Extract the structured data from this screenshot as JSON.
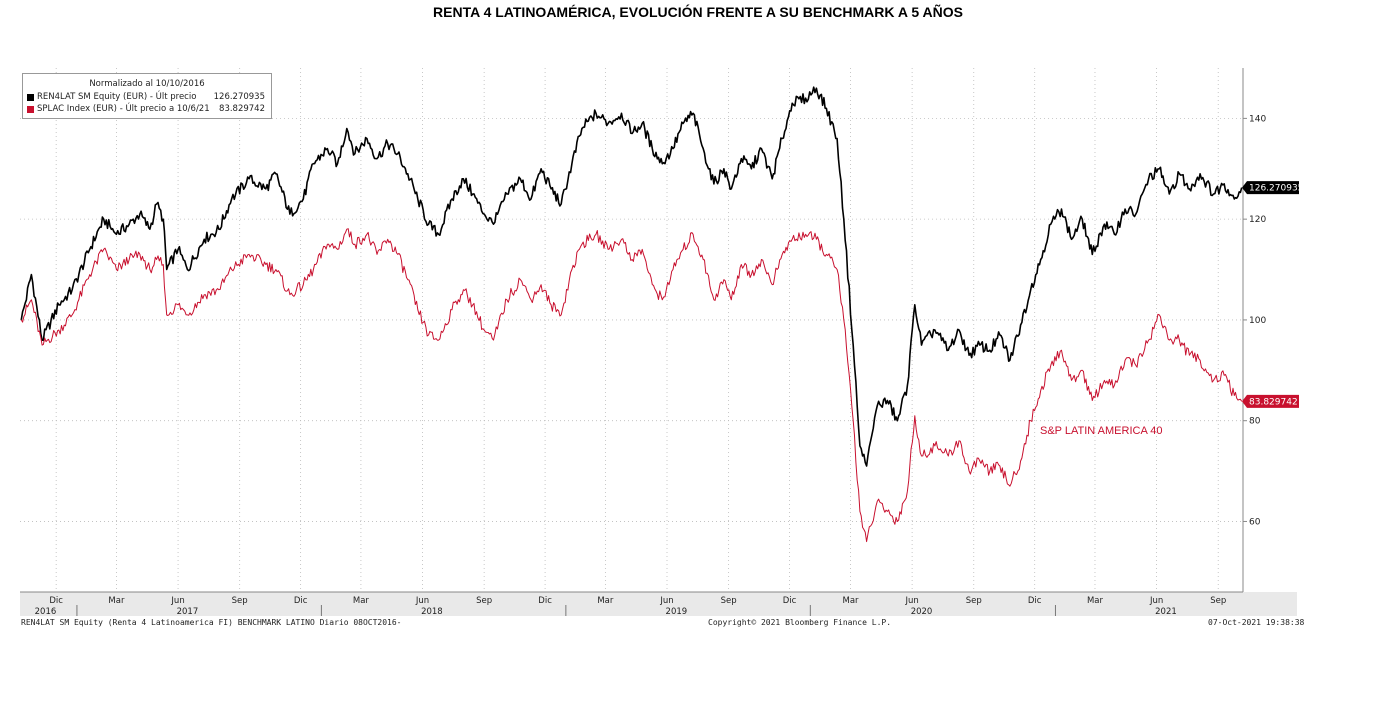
{
  "title": "RENTA 4 LATINOAMÉRICA, EVOLUCIÓN FRENTE A SU BENCHMARK A 5 AÑOS",
  "legend": {
    "header": "Normalizado al 10/10/2016",
    "rows": [
      {
        "label": "REN4LAT SM Equity (EUR) - Últ precio",
        "value": "126.270935",
        "color": "#000000"
      },
      {
        "label": "SPLAC Index (EUR) - Últ precio a 10/6/21",
        "value": "83.829742",
        "color": "#c8102e"
      }
    ]
  },
  "annotation": "S&P LATIN AMERICA 40",
  "last_labels": {
    "fund": "126.270935",
    "bench": "83.829742"
  },
  "footer": {
    "left": "REN4LAT SM Equity (Renta 4 Latinoamerica FI) BENCHMARK LATINO  Diario 08OCT2016-",
    "center": "Copyright© 2021 Bloomberg Finance L.P.",
    "right": "07-Oct-2021 19:38:38"
  },
  "chart_data": {
    "type": "line",
    "ylim": [
      46,
      150
    ],
    "yticks": [
      60,
      80,
      100,
      120,
      140
    ],
    "grid": true,
    "xlim": [
      "2016-10-08",
      "2021-10-08"
    ],
    "x_month_ticks": [
      {
        "label": "Dic",
        "date": "2016-12-01"
      },
      {
        "label": "Mar",
        "date": "2017-03-01"
      },
      {
        "label": "Jun",
        "date": "2017-06-01"
      },
      {
        "label": "Sep",
        "date": "2017-09-01"
      },
      {
        "label": "Dic",
        "date": "2017-12-01"
      },
      {
        "label": "Mar",
        "date": "2018-03-01"
      },
      {
        "label": "Jun",
        "date": "2018-06-01"
      },
      {
        "label": "Sep",
        "date": "2018-09-01"
      },
      {
        "label": "Dic",
        "date": "2018-12-01"
      },
      {
        "label": "Mar",
        "date": "2019-03-01"
      },
      {
        "label": "Jun",
        "date": "2019-06-01"
      },
      {
        "label": "Sep",
        "date": "2019-09-01"
      },
      {
        "label": "Dic",
        "date": "2019-12-01"
      },
      {
        "label": "Mar",
        "date": "2020-03-01"
      },
      {
        "label": "Jun",
        "date": "2020-06-01"
      },
      {
        "label": "Sep",
        "date": "2020-09-01"
      },
      {
        "label": "Dic",
        "date": "2020-12-01"
      },
      {
        "label": "Mar",
        "date": "2021-03-01"
      },
      {
        "label": "Jun",
        "date": "2021-06-01"
      },
      {
        "label": "Sep",
        "date": "2021-09-01"
      }
    ],
    "x_year_ticks": [
      {
        "label": "2016",
        "date": "2016-11-15"
      },
      {
        "label": "2017",
        "date": "2017-06-15"
      },
      {
        "label": "2018",
        "date": "2018-06-15"
      },
      {
        "label": "2019",
        "date": "2019-06-15"
      },
      {
        "label": "2020",
        "date": "2020-06-15"
      },
      {
        "label": "2021",
        "date": "2021-06-15"
      }
    ],
    "year_separators": [
      "2017-01-01",
      "2018-01-01",
      "2019-01-01",
      "2020-01-01",
      "2021-01-01"
    ],
    "series": [
      {
        "name": "REN4LAT SM Equity (EUR)",
        "color": "#000000",
        "points": [
          [
            "2016-10-10",
            100
          ],
          [
            "2016-10-25",
            109
          ],
          [
            "2016-11-10",
            96
          ],
          [
            "2016-12-05",
            103
          ],
          [
            "2016-12-25",
            106
          ],
          [
            "2017-01-20",
            114
          ],
          [
            "2017-02-10",
            120
          ],
          [
            "2017-03-01",
            117
          ],
          [
            "2017-03-20",
            119
          ],
          [
            "2017-04-05",
            121
          ],
          [
            "2017-04-20",
            118
          ],
          [
            "2017-04-30",
            123
          ],
          [
            "2017-05-10",
            120
          ],
          [
            "2017-05-15",
            110
          ],
          [
            "2017-06-01",
            114
          ],
          [
            "2017-06-15",
            110
          ],
          [
            "2017-07-10",
            116
          ],
          [
            "2017-08-01",
            118
          ],
          [
            "2017-08-20",
            124
          ],
          [
            "2017-09-15",
            128
          ],
          [
            "2017-10-10",
            126
          ],
          [
            "2017-10-25",
            129
          ],
          [
            "2017-11-15",
            121
          ],
          [
            "2017-12-05",
            124
          ],
          [
            "2017-12-20",
            131
          ],
          [
            "2018-01-10",
            134
          ],
          [
            "2018-01-25",
            131
          ],
          [
            "2018-02-08",
            138
          ],
          [
            "2018-02-20",
            133
          ],
          [
            "2018-03-10",
            136
          ],
          [
            "2018-03-25",
            132
          ],
          [
            "2018-04-10",
            135
          ],
          [
            "2018-04-25",
            133
          ],
          [
            "2018-05-10",
            129
          ],
          [
            "2018-05-25",
            124
          ],
          [
            "2018-06-10",
            119
          ],
          [
            "2018-06-25",
            117
          ],
          [
            "2018-07-15",
            124
          ],
          [
            "2018-08-01",
            128
          ],
          [
            "2018-08-15",
            125
          ],
          [
            "2018-09-01",
            121
          ],
          [
            "2018-09-15",
            119
          ],
          [
            "2018-10-05",
            125
          ],
          [
            "2018-10-25",
            128
          ],
          [
            "2018-11-10",
            124
          ],
          [
            "2018-11-25",
            130
          ],
          [
            "2018-12-10",
            126
          ],
          [
            "2018-12-25",
            123
          ],
          [
            "2019-01-10",
            131
          ],
          [
            "2019-01-25",
            138
          ],
          [
            "2019-02-15",
            141
          ],
          [
            "2019-03-05",
            139
          ],
          [
            "2019-03-25",
            141
          ],
          [
            "2019-04-10",
            137
          ],
          [
            "2019-04-25",
            139
          ],
          [
            "2019-05-10",
            134
          ],
          [
            "2019-05-25",
            131
          ],
          [
            "2019-06-10",
            134
          ],
          [
            "2019-06-25",
            139
          ],
          [
            "2019-07-10",
            141
          ],
          [
            "2019-07-25",
            134
          ],
          [
            "2019-08-10",
            127
          ],
          [
            "2019-08-25",
            130
          ],
          [
            "2019-09-05",
            126
          ],
          [
            "2019-09-20",
            132
          ],
          [
            "2019-10-05",
            130
          ],
          [
            "2019-10-20",
            134
          ],
          [
            "2019-11-05",
            128
          ],
          [
            "2019-11-20",
            136
          ],
          [
            "2019-12-05",
            143
          ],
          [
            "2019-12-25",
            144
          ],
          [
            "2020-01-10",
            146
          ],
          [
            "2020-01-25",
            142
          ],
          [
            "2020-02-10",
            136
          ],
          [
            "2020-02-20",
            120
          ],
          [
            "2020-03-05",
            95
          ],
          [
            "2020-03-15",
            75
          ],
          [
            "2020-03-25",
            71
          ],
          [
            "2020-04-10",
            83
          ],
          [
            "2020-04-25",
            84
          ],
          [
            "2020-05-10",
            80
          ],
          [
            "2020-05-25",
            87
          ],
          [
            "2020-06-05",
            103
          ],
          [
            "2020-06-15",
            95
          ],
          [
            "2020-07-05",
            98
          ],
          [
            "2020-07-25",
            94
          ],
          [
            "2020-08-10",
            98
          ],
          [
            "2020-08-25",
            93
          ],
          [
            "2020-09-10",
            95
          ],
          [
            "2020-09-25",
            94
          ],
          [
            "2020-10-10",
            97
          ],
          [
            "2020-10-25",
            92
          ],
          [
            "2020-11-10",
            99
          ],
          [
            "2020-11-25",
            106
          ],
          [
            "2020-12-10",
            112
          ],
          [
            "2020-12-25",
            119
          ],
          [
            "2021-01-10",
            122
          ],
          [
            "2021-01-25",
            116
          ],
          [
            "2021-02-10",
            120
          ],
          [
            "2021-02-25",
            113
          ],
          [
            "2021-03-15",
            119
          ],
          [
            "2021-03-30",
            117
          ],
          [
            "2021-04-15",
            122
          ],
          [
            "2021-05-01",
            121
          ],
          [
            "2021-05-20",
            128
          ],
          [
            "2021-06-05",
            130
          ],
          [
            "2021-06-20",
            125
          ],
          [
            "2021-07-05",
            129
          ],
          [
            "2021-07-20",
            126
          ],
          [
            "2021-08-05",
            129
          ],
          [
            "2021-08-25",
            125
          ],
          [
            "2021-09-10",
            127
          ],
          [
            "2021-09-25",
            124
          ],
          [
            "2021-10-06",
            126.27
          ]
        ]
      },
      {
        "name": "SPLAC Index (EUR)",
        "color": "#c8102e",
        "points": [
          [
            "2016-10-10",
            100
          ],
          [
            "2016-10-25",
            104
          ],
          [
            "2016-11-10",
            95
          ],
          [
            "2016-12-05",
            98
          ],
          [
            "2016-12-25",
            101
          ],
          [
            "2017-01-20",
            109
          ],
          [
            "2017-02-10",
            114
          ],
          [
            "2017-03-01",
            110
          ],
          [
            "2017-03-20",
            112
          ],
          [
            "2017-04-05",
            113
          ],
          [
            "2017-04-20",
            110
          ],
          [
            "2017-04-30",
            112
          ],
          [
            "2017-05-10",
            111
          ],
          [
            "2017-05-15",
            101
          ],
          [
            "2017-06-01",
            103
          ],
          [
            "2017-06-15",
            101
          ],
          [
            "2017-07-10",
            105
          ],
          [
            "2017-08-01",
            106
          ],
          [
            "2017-08-20",
            110
          ],
          [
            "2017-09-15",
            113
          ],
          [
            "2017-10-10",
            111
          ],
          [
            "2017-10-25",
            110
          ],
          [
            "2017-11-15",
            105
          ],
          [
            "2017-12-05",
            107
          ],
          [
            "2017-12-20",
            110
          ],
          [
            "2018-01-10",
            115
          ],
          [
            "2018-01-25",
            114
          ],
          [
            "2018-02-08",
            118
          ],
          [
            "2018-02-20",
            115
          ],
          [
            "2018-03-10",
            117
          ],
          [
            "2018-03-25",
            113
          ],
          [
            "2018-04-10",
            116
          ],
          [
            "2018-04-25",
            113
          ],
          [
            "2018-05-10",
            108
          ],
          [
            "2018-05-25",
            102
          ],
          [
            "2018-06-10",
            97
          ],
          [
            "2018-06-25",
            96
          ],
          [
            "2018-07-15",
            102
          ],
          [
            "2018-08-01",
            106
          ],
          [
            "2018-08-15",
            103
          ],
          [
            "2018-09-01",
            98
          ],
          [
            "2018-09-15",
            96
          ],
          [
            "2018-10-05",
            104
          ],
          [
            "2018-10-25",
            108
          ],
          [
            "2018-11-10",
            104
          ],
          [
            "2018-11-25",
            107
          ],
          [
            "2018-12-10",
            103
          ],
          [
            "2018-12-25",
            101
          ],
          [
            "2019-01-10",
            110
          ],
          [
            "2019-01-25",
            115
          ],
          [
            "2019-02-15",
            117
          ],
          [
            "2019-03-05",
            114
          ],
          [
            "2019-03-25",
            116
          ],
          [
            "2019-04-10",
            112
          ],
          [
            "2019-04-25",
            114
          ],
          [
            "2019-05-10",
            107
          ],
          [
            "2019-05-25",
            104
          ],
          [
            "2019-06-10",
            110
          ],
          [
            "2019-06-25",
            114
          ],
          [
            "2019-07-10",
            117
          ],
          [
            "2019-07-25",
            112
          ],
          [
            "2019-08-10",
            104
          ],
          [
            "2019-08-25",
            108
          ],
          [
            "2019-09-05",
            104
          ],
          [
            "2019-09-20",
            111
          ],
          [
            "2019-10-05",
            109
          ],
          [
            "2019-10-20",
            112
          ],
          [
            "2019-11-05",
            107
          ],
          [
            "2019-11-20",
            113
          ],
          [
            "2019-12-05",
            116
          ],
          [
            "2019-12-25",
            117
          ],
          [
            "2020-01-10",
            116
          ],
          [
            "2020-01-25",
            113
          ],
          [
            "2020-02-10",
            110
          ],
          [
            "2020-02-20",
            100
          ],
          [
            "2020-03-05",
            80
          ],
          [
            "2020-03-15",
            62
          ],
          [
            "2020-03-25",
            56
          ],
          [
            "2020-04-10",
            64
          ],
          [
            "2020-04-25",
            62
          ],
          [
            "2020-05-10",
            60
          ],
          [
            "2020-05-25",
            66
          ],
          [
            "2020-06-05",
            81
          ],
          [
            "2020-06-15",
            73
          ],
          [
            "2020-07-05",
            75
          ],
          [
            "2020-07-25",
            73
          ],
          [
            "2020-08-10",
            76
          ],
          [
            "2020-08-25",
            70
          ],
          [
            "2020-09-10",
            72
          ],
          [
            "2020-09-25",
            70
          ],
          [
            "2020-10-10",
            71
          ],
          [
            "2020-10-25",
            67
          ],
          [
            "2020-11-10",
            72
          ],
          [
            "2020-11-25",
            80
          ],
          [
            "2020-12-10",
            86
          ],
          [
            "2020-12-25",
            91
          ],
          [
            "2021-01-10",
            94
          ],
          [
            "2021-01-25",
            88
          ],
          [
            "2021-02-10",
            90
          ],
          [
            "2021-02-25",
            84
          ],
          [
            "2021-03-15",
            88
          ],
          [
            "2021-03-30",
            87
          ],
          [
            "2021-04-15",
            92
          ],
          [
            "2021-05-01",
            91
          ],
          [
            "2021-05-20",
            96
          ],
          [
            "2021-06-05",
            101
          ],
          [
            "2021-06-20",
            96
          ],
          [
            "2021-07-05",
            96
          ],
          [
            "2021-07-20",
            93
          ],
          [
            "2021-08-05",
            92
          ],
          [
            "2021-08-25",
            88
          ],
          [
            "2021-09-10",
            89
          ],
          [
            "2021-09-25",
            85
          ],
          [
            "2021-10-06",
            83.83
          ]
        ]
      }
    ]
  }
}
